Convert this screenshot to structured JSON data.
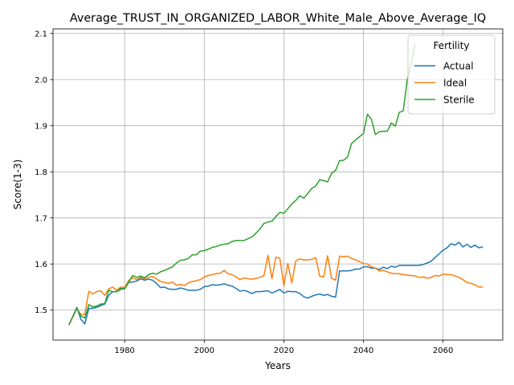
{
  "chart_data": {
    "type": "line",
    "title": "Average_TRUST_IN_ORGANIZED_LABOR_White_Male_Above_Average_IQ",
    "xlabel": "Years",
    "ylabel": "Score(1-3)",
    "xlim": [
      1962,
      2075
    ],
    "ylim": [
      1.435,
      2.11
    ],
    "xticks": [
      1980,
      2000,
      2020,
      2040,
      2060
    ],
    "yticks": [
      1.5,
      1.6,
      1.7,
      1.8,
      1.9,
      2.0,
      2.1
    ],
    "xtick_labels": [
      "1980",
      "2000",
      "2020",
      "2040",
      "2060"
    ],
    "ytick_labels": [
      "1.5",
      "1.6",
      "1.7",
      "1.8",
      "1.9",
      "2.0",
      "2.1"
    ],
    "grid": true,
    "legend": {
      "title": "Fertility",
      "position": "top-right"
    },
    "series": [
      {
        "name": "Actual",
        "color": "#1f77b4",
        "points": [
          [
            1966,
            1.468
          ],
          [
            1968,
            1.506
          ],
          [
            1969,
            1.48
          ],
          [
            1970,
            1.47
          ],
          [
            1971,
            1.504
          ],
          [
            1972,
            1.504
          ],
          [
            1973,
            1.506
          ],
          [
            1974,
            1.51
          ],
          [
            1975,
            1.513
          ],
          [
            1976,
            1.532
          ],
          [
            1977,
            1.54
          ],
          [
            1978,
            1.54
          ],
          [
            1979,
            1.545
          ],
          [
            1980,
            1.547
          ],
          [
            1981,
            1.56
          ],
          [
            1982,
            1.561
          ],
          [
            1983,
            1.563
          ],
          [
            1984,
            1.568
          ],
          [
            1985,
            1.565
          ],
          [
            1986,
            1.567
          ],
          [
            1987,
            1.565
          ],
          [
            1988,
            1.558
          ],
          [
            1989,
            1.549
          ],
          [
            1990,
            1.55
          ],
          [
            1991,
            1.546
          ],
          [
            1992,
            1.545
          ],
          [
            1993,
            1.545
          ],
          [
            1994,
            1.548
          ],
          [
            1995,
            1.546
          ],
          [
            1996,
            1.543
          ],
          [
            1997,
            1.543
          ],
          [
            1998,
            1.543
          ],
          [
            1999,
            1.545
          ],
          [
            2000,
            1.551
          ],
          [
            2001,
            1.552
          ],
          [
            2002,
            1.555
          ],
          [
            2003,
            1.554
          ],
          [
            2004,
            1.555
          ],
          [
            2005,
            1.557
          ],
          [
            2006,
            1.554
          ],
          [
            2007,
            1.552
          ],
          [
            2008,
            1.547
          ],
          [
            2009,
            1.541
          ],
          [
            2010,
            1.543
          ],
          [
            2011,
            1.54
          ],
          [
            2012,
            1.536
          ],
          [
            2013,
            1.54
          ],
          [
            2014,
            1.54
          ],
          [
            2015,
            1.541
          ],
          [
            2016,
            1.542
          ],
          [
            2017,
            1.537
          ],
          [
            2018,
            1.541
          ],
          [
            2019,
            1.545
          ],
          [
            2020,
            1.537
          ],
          [
            2021,
            1.541
          ],
          [
            2022,
            1.54
          ],
          [
            2023,
            1.54
          ],
          [
            2024,
            1.536
          ],
          [
            2025,
            1.529
          ],
          [
            2026,
            1.526
          ],
          [
            2027,
            1.53
          ],
          [
            2028,
            1.533
          ],
          [
            2029,
            1.535
          ],
          [
            2030,
            1.532
          ],
          [
            2031,
            1.534
          ],
          [
            2032,
            1.53
          ],
          [
            2033,
            1.528
          ],
          [
            2034,
            1.585
          ],
          [
            2035,
            1.585
          ],
          [
            2036,
            1.585
          ],
          [
            2037,
            1.586
          ],
          [
            2038,
            1.589
          ],
          [
            2039,
            1.589
          ],
          [
            2040,
            1.594
          ],
          [
            2041,
            1.594
          ],
          [
            2042,
            1.591
          ],
          [
            2043,
            1.591
          ],
          [
            2044,
            1.588
          ],
          [
            2045,
            1.593
          ],
          [
            2046,
            1.59
          ],
          [
            2047,
            1.595
          ],
          [
            2048,
            1.593
          ],
          [
            2049,
            1.597
          ],
          [
            2050,
            1.597
          ],
          [
            2051,
            1.597
          ],
          [
            2052,
            1.597
          ],
          [
            2053,
            1.597
          ],
          [
            2054,
            1.597
          ],
          [
            2055,
            1.599
          ],
          [
            2056,
            1.602
          ],
          [
            2057,
            1.606
          ],
          [
            2058,
            1.614
          ],
          [
            2059,
            1.622
          ],
          [
            2060,
            1.63
          ],
          [
            2061,
            1.635
          ],
          [
            2062,
            1.644
          ],
          [
            2063,
            1.641
          ],
          [
            2064,
            1.647
          ],
          [
            2065,
            1.637
          ],
          [
            2066,
            1.643
          ],
          [
            2067,
            1.636
          ],
          [
            2068,
            1.641
          ],
          [
            2069,
            1.635
          ],
          [
            2070,
            1.637
          ]
        ]
      },
      {
        "name": "Ideal",
        "color": "#ff7f0e",
        "points": [
          [
            1966,
            1.468
          ],
          [
            1968,
            1.504
          ],
          [
            1969,
            1.49
          ],
          [
            1970,
            1.491
          ],
          [
            1971,
            1.541
          ],
          [
            1972,
            1.535
          ],
          [
            1973,
            1.54
          ],
          [
            1974,
            1.542
          ],
          [
            1975,
            1.532
          ],
          [
            1976,
            1.546
          ],
          [
            1977,
            1.55
          ],
          [
            1978,
            1.543
          ],
          [
            1979,
            1.55
          ],
          [
            1980,
            1.549
          ],
          [
            1981,
            1.564
          ],
          [
            1982,
            1.57
          ],
          [
            1983,
            1.566
          ],
          [
            1984,
            1.571
          ],
          [
            1985,
            1.568
          ],
          [
            1986,
            1.571
          ],
          [
            1987,
            1.573
          ],
          [
            1988,
            1.568
          ],
          [
            1989,
            1.562
          ],
          [
            1990,
            1.56
          ],
          [
            1991,
            1.558
          ],
          [
            1992,
            1.561
          ],
          [
            1993,
            1.554
          ],
          [
            1994,
            1.556
          ],
          [
            1995,
            1.553
          ],
          [
            1996,
            1.559
          ],
          [
            1997,
            1.562
          ],
          [
            1998,
            1.564
          ],
          [
            1999,
            1.566
          ],
          [
            2000,
            1.572
          ],
          [
            2001,
            1.575
          ],
          [
            2002,
            1.577
          ],
          [
            2003,
            1.579
          ],
          [
            2004,
            1.58
          ],
          [
            2005,
            1.586
          ],
          [
            2006,
            1.579
          ],
          [
            2007,
            1.577
          ],
          [
            2008,
            1.572
          ],
          [
            2009,
            1.566
          ],
          [
            2010,
            1.57
          ],
          [
            2011,
            1.568
          ],
          [
            2012,
            1.567
          ],
          [
            2013,
            1.569
          ],
          [
            2014,
            1.571
          ],
          [
            2015,
            1.575
          ],
          [
            2016,
            1.619
          ],
          [
            2017,
            1.568
          ],
          [
            2018,
            1.615
          ],
          [
            2019,
            1.612
          ],
          [
            2020,
            1.553
          ],
          [
            2021,
            1.601
          ],
          [
            2022,
            1.559
          ],
          [
            2023,
            1.607
          ],
          [
            2024,
            1.611
          ],
          [
            2025,
            1.609
          ],
          [
            2026,
            1.609
          ],
          [
            2027,
            1.61
          ],
          [
            2028,
            1.614
          ],
          [
            2029,
            1.574
          ],
          [
            2030,
            1.572
          ],
          [
            2031,
            1.618
          ],
          [
            2032,
            1.569
          ],
          [
            2033,
            1.565
          ],
          [
            2034,
            1.617
          ],
          [
            2035,
            1.616
          ],
          [
            2036,
            1.617
          ],
          [
            2037,
            1.612
          ],
          [
            2038,
            1.609
          ],
          [
            2039,
            1.605
          ],
          [
            2040,
            1.601
          ],
          [
            2041,
            1.6
          ],
          [
            2042,
            1.594
          ],
          [
            2043,
            1.591
          ],
          [
            2044,
            1.585
          ],
          [
            2045,
            1.586
          ],
          [
            2046,
            1.583
          ],
          [
            2047,
            1.58
          ],
          [
            2048,
            1.579
          ],
          [
            2049,
            1.579
          ],
          [
            2050,
            1.577
          ],
          [
            2051,
            1.576
          ],
          [
            2052,
            1.575
          ],
          [
            2053,
            1.574
          ],
          [
            2054,
            1.571
          ],
          [
            2055,
            1.572
          ],
          [
            2056,
            1.569
          ],
          [
            2057,
            1.571
          ],
          [
            2058,
            1.575
          ],
          [
            2059,
            1.574
          ],
          [
            2060,
            1.578
          ],
          [
            2061,
            1.577
          ],
          [
            2062,
            1.577
          ],
          [
            2063,
            1.574
          ],
          [
            2064,
            1.571
          ],
          [
            2065,
            1.566
          ],
          [
            2066,
            1.56
          ],
          [
            2067,
            1.558
          ],
          [
            2068,
            1.555
          ],
          [
            2069,
            1.55
          ],
          [
            2070,
            1.55
          ]
        ]
      },
      {
        "name": "Sterile",
        "color": "#2ca02c",
        "points": [
          [
            1966,
            1.468
          ],
          [
            1968,
            1.504
          ],
          [
            1969,
            1.487
          ],
          [
            1970,
            1.483
          ],
          [
            1971,
            1.512
          ],
          [
            1972,
            1.507
          ],
          [
            1973,
            1.509
          ],
          [
            1974,
            1.513
          ],
          [
            1975,
            1.514
          ],
          [
            1976,
            1.543
          ],
          [
            1977,
            1.54
          ],
          [
            1978,
            1.54
          ],
          [
            1979,
            1.547
          ],
          [
            1980,
            1.546
          ],
          [
            1981,
            1.56
          ],
          [
            1982,
            1.575
          ],
          [
            1983,
            1.571
          ],
          [
            1984,
            1.574
          ],
          [
            1985,
            1.57
          ],
          [
            1986,
            1.577
          ],
          [
            1987,
            1.58
          ],
          [
            1988,
            1.578
          ],
          [
            1989,
            1.583
          ],
          [
            1990,
            1.586
          ],
          [
            1991,
            1.59
          ],
          [
            1992,
            1.594
          ],
          [
            1993,
            1.602
          ],
          [
            1994,
            1.608
          ],
          [
            1995,
            1.609
          ],
          [
            1996,
            1.612
          ],
          [
            1997,
            1.62
          ],
          [
            1998,
            1.62
          ],
          [
            1999,
            1.628
          ],
          [
            2000,
            1.629
          ],
          [
            2001,
            1.632
          ],
          [
            2002,
            1.636
          ],
          [
            2003,
            1.638
          ],
          [
            2004,
            1.641
          ],
          [
            2005,
            1.643
          ],
          [
            2006,
            1.644
          ],
          [
            2007,
            1.649
          ],
          [
            2008,
            1.651
          ],
          [
            2009,
            1.651
          ],
          [
            2010,
            1.651
          ],
          [
            2011,
            1.655
          ],
          [
            2012,
            1.659
          ],
          [
            2013,
            1.667
          ],
          [
            2014,
            1.676
          ],
          [
            2015,
            1.688
          ],
          [
            2016,
            1.691
          ],
          [
            2017,
            1.693
          ],
          [
            2018,
            1.703
          ],
          [
            2019,
            1.712
          ],
          [
            2020,
            1.71
          ],
          [
            2021,
            1.72
          ],
          [
            2022,
            1.73
          ],
          [
            2023,
            1.738
          ],
          [
            2024,
            1.748
          ],
          [
            2025,
            1.743
          ],
          [
            2026,
            1.753
          ],
          [
            2027,
            1.764
          ],
          [
            2028,
            1.769
          ],
          [
            2029,
            1.783
          ],
          [
            2030,
            1.781
          ],
          [
            2031,
            1.778
          ],
          [
            2032,
            1.797
          ],
          [
            2033,
            1.803
          ],
          [
            2034,
            1.824
          ],
          [
            2035,
            1.825
          ],
          [
            2036,
            1.832
          ],
          [
            2037,
            1.861
          ],
          [
            2038,
            1.869
          ],
          [
            2039,
            1.876
          ],
          [
            2040,
            1.883
          ],
          [
            2041,
            1.925
          ],
          [
            2042,
            1.914
          ],
          [
            2043,
            1.881
          ],
          [
            2044,
            1.887
          ],
          [
            2045,
            1.888
          ],
          [
            2046,
            1.888
          ],
          [
            2047,
            1.906
          ],
          [
            2048,
            1.899
          ],
          [
            2049,
            1.929
          ],
          [
            2050,
            1.932
          ],
          [
            2051,
            2.0
          ],
          [
            2052,
            2.034
          ],
          [
            2053,
            2.078
          ]
        ]
      }
    ]
  }
}
